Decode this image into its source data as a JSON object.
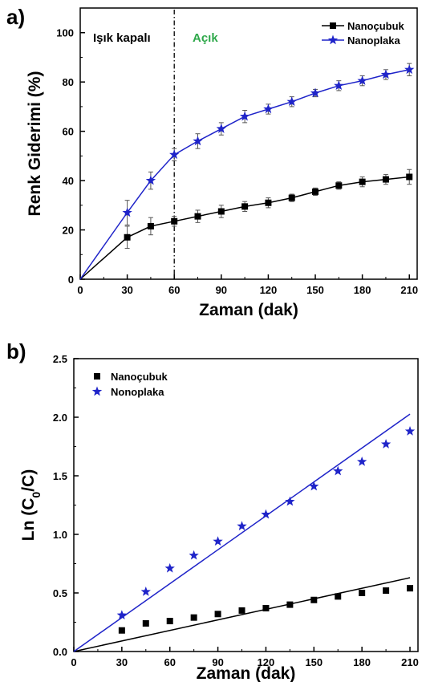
{
  "chart_data": [
    {
      "panel": "a)",
      "type": "line",
      "xlabel": "Zaman (dak)",
      "ylabel": "Renk Giderimi (%)",
      "xlim": [
        0,
        215
      ],
      "ylim": [
        0,
        110
      ],
      "xticks": [
        0,
        30,
        60,
        90,
        120,
        150,
        180,
        210
      ],
      "yticks": [
        0,
        20,
        40,
        60,
        80,
        100
      ],
      "legend_position": "top-right",
      "annotations": [
        {
          "text": "Işık kapalı",
          "color": "#000000"
        },
        {
          "text": "Açık",
          "color": "#2ea84a"
        }
      ],
      "divider_x": 60,
      "x": [
        0,
        30,
        45,
        60,
        75,
        90,
        105,
        120,
        135,
        150,
        165,
        180,
        195,
        210
      ],
      "series": [
        {
          "name": "Nanoçubuk",
          "marker": "square",
          "color": "#000000",
          "values": [
            0,
            17,
            21.5,
            23.5,
            25.5,
            27.5,
            29.5,
            31,
            33,
            35.5,
            38,
            39.5,
            40.5,
            41.5
          ],
          "errors": [
            0,
            4.5,
            3.5,
            2,
            2.5,
            2.5,
            2,
            2,
            1.5,
            1.5,
            1.5,
            2,
            2,
            3
          ]
        },
        {
          "name": "Nanoplaka",
          "marker": "star",
          "color": "#1f24c9",
          "values": [
            0,
            27,
            40,
            50.5,
            56,
            61,
            66,
            69,
            72,
            75.5,
            78.5,
            80.5,
            83,
            85
          ],
          "errors": [
            0,
            5,
            3.5,
            2.5,
            3,
            2.5,
            2.5,
            2,
            2,
            1.5,
            2,
            2,
            2,
            2.5
          ]
        }
      ]
    },
    {
      "panel": "b)",
      "type": "scatter",
      "xlabel": "Zaman (dak)",
      "ylabel_main": "Ln (C",
      "ylabel_sub": "0",
      "ylabel_tail": "/C)",
      "xlim": [
        0,
        215
      ],
      "ylim": [
        0,
        2.5
      ],
      "xticks": [
        0,
        30,
        60,
        90,
        120,
        150,
        180,
        210
      ],
      "yticks": [
        0.0,
        0.5,
        1.0,
        1.5,
        2.0,
        2.5
      ],
      "ytick_labels": [
        "0.0",
        "0.5",
        "1.0",
        "1.5",
        "2.0",
        "2.5"
      ],
      "legend_position": "top-left",
      "x": [
        30,
        45,
        60,
        75,
        90,
        105,
        120,
        135,
        150,
        165,
        180,
        195,
        210
      ],
      "series": [
        {
          "name": "Nanoçubuk",
          "marker": "square",
          "color": "#000000",
          "values": [
            0.18,
            0.24,
            0.26,
            0.29,
            0.32,
            0.35,
            0.37,
            0.4,
            0.44,
            0.47,
            0.5,
            0.52,
            0.54
          ],
          "fit_slope": 0.003
        },
        {
          "name": "Nonoplaka",
          "marker": "star",
          "color": "#1f24c9",
          "values": [
            0.31,
            0.51,
            0.71,
            0.82,
            0.94,
            1.07,
            1.17,
            1.28,
            1.41,
            1.54,
            1.62,
            1.77,
            1.88
          ],
          "fit_slope": 0.00965
        }
      ]
    }
  ]
}
